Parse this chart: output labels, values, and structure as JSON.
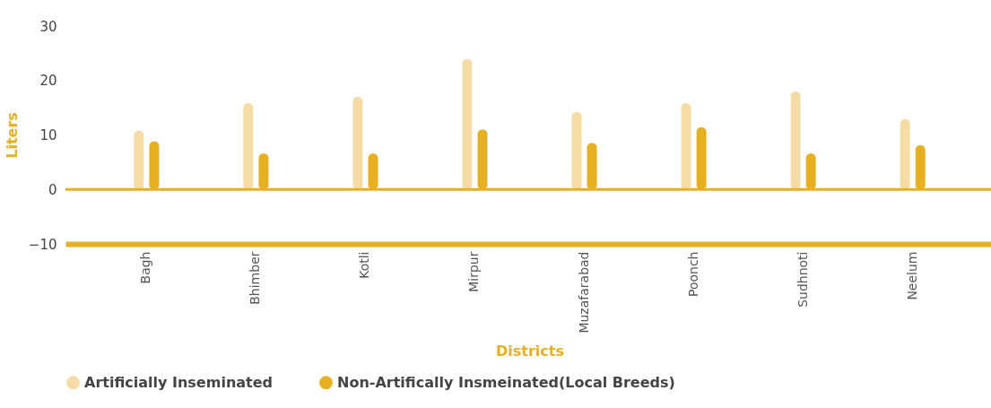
{
  "chart_data": {
    "type": "bar",
    "xlabel": "Districts",
    "ylabel": "Liters",
    "categories": [
      "Bagh",
      "Bhimber",
      "Kotli",
      "Mirpur",
      "Muzafarabad",
      "Poonch",
      "Sudhnoti",
      "Neelum"
    ],
    "series": [
      {
        "name": "Artificially Inseminated",
        "color": "#f5dca6",
        "values": [
          10.8,
          15.8,
          17,
          23.9,
          14.2,
          15.8,
          18,
          12.9
        ]
      },
      {
        "name": "Non-Artifically Insmeinated(Local Breeds)",
        "color": "#e6b022",
        "values": [
          8.8,
          6.6,
          6.6,
          11,
          8.5,
          11.4,
          6.6,
          8.1
        ]
      }
    ],
    "ylim": [
      -10,
      30
    ],
    "yticks": [
      -10,
      0,
      10,
      20,
      30
    ],
    "ref_lines": [
      {
        "axis": "y",
        "value": 0,
        "color": "#e6b022"
      }
    ],
    "grid": false,
    "legend": "bottom"
  }
}
